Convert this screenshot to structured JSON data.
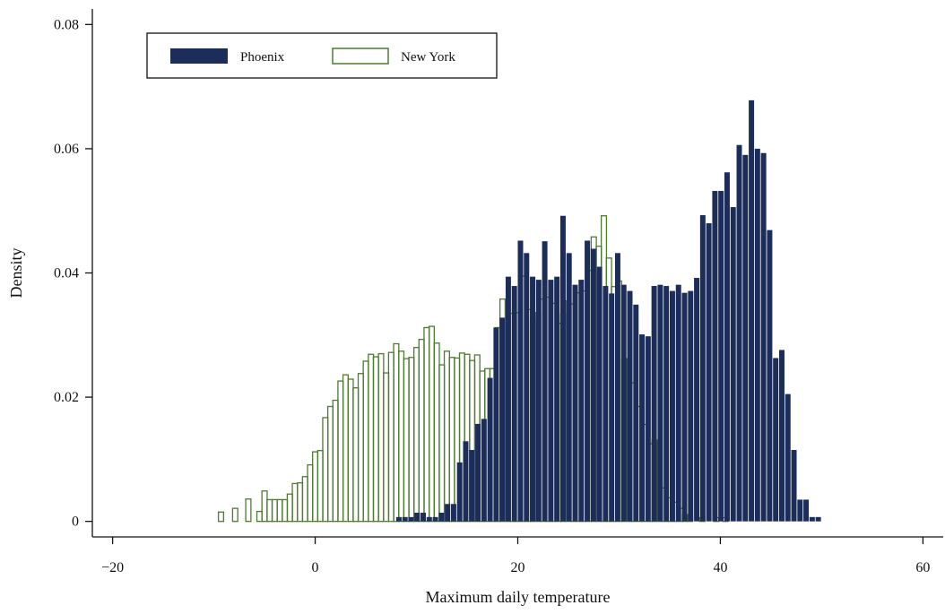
{
  "chart_data": {
    "type": "histogram",
    "title": "",
    "xlabel": "Maximum daily temperature",
    "ylabel": "Density",
    "xlim": [
      -22,
      62
    ],
    "ylim": [
      -0.0025,
      0.0825
    ],
    "xticks": [
      -20,
      0,
      20,
      40,
      60
    ],
    "xtick_labels": [
      "−20",
      "0",
      "20",
      "40",
      "60"
    ],
    "yticks": [
      0,
      0.02,
      0.04,
      0.06,
      0.08
    ],
    "ytick_labels": [
      "0",
      "0.02",
      "0.04",
      "0.06",
      "0.08"
    ],
    "grid": false,
    "legend_position": "top-left",
    "bin_width": 0.6,
    "series": [
      {
        "name": "Phoenix",
        "style": "filled",
        "fill_color": "#1c2d5a",
        "bins": [
          [
            8,
            0.0007
          ],
          [
            8.6,
            0.0007
          ],
          [
            9.2,
            0.0007
          ],
          [
            9.8,
            0.0014
          ],
          [
            10.4,
            0.0014
          ],
          [
            11,
            0.0007
          ],
          [
            11.6,
            0.0007
          ],
          [
            12.2,
            0.0014
          ],
          [
            12.8,
            0.0028
          ],
          [
            13.4,
            0.0028
          ],
          [
            14,
            0.0095
          ],
          [
            14.6,
            0.0129
          ],
          [
            15.2,
            0.0115
          ],
          [
            15.8,
            0.0157
          ],
          [
            16.4,
            0.0165
          ],
          [
            17,
            0.0231
          ],
          [
            17.6,
            0.0312
          ],
          [
            18.2,
            0.0328
          ],
          [
            18.8,
            0.0394
          ],
          [
            19.4,
            0.0379
          ],
          [
            20,
            0.0452
          ],
          [
            20.6,
            0.0432
          ],
          [
            21.2,
            0.0394
          ],
          [
            21.8,
            0.0389
          ],
          [
            22.4,
            0.0451
          ],
          [
            23,
            0.0389
          ],
          [
            23.6,
            0.0394
          ],
          [
            24.2,
            0.0492
          ],
          [
            24.8,
            0.0432
          ],
          [
            25.4,
            0.0381
          ],
          [
            26,
            0.0389
          ],
          [
            26.6,
            0.0452
          ],
          [
            27.2,
            0.0439
          ],
          [
            27.8,
            0.041
          ],
          [
            28.4,
            0.0379
          ],
          [
            29,
            0.0367
          ],
          [
            29.6,
            0.0432
          ],
          [
            30.2,
            0.0381
          ],
          [
            30.8,
            0.0371
          ],
          [
            31.4,
            0.0349
          ],
          [
            32,
            0.0301
          ],
          [
            32.6,
            0.0298
          ],
          [
            33.2,
            0.0379
          ],
          [
            33.8,
            0.0381
          ],
          [
            34.4,
            0.0379
          ],
          [
            35,
            0.0371
          ],
          [
            35.6,
            0.0381
          ],
          [
            36.2,
            0.0368
          ],
          [
            36.8,
            0.0371
          ],
          [
            37.4,
            0.0392
          ],
          [
            38,
            0.0493
          ],
          [
            38.6,
            0.048
          ],
          [
            39.2,
            0.0532
          ],
          [
            39.8,
            0.0532
          ],
          [
            40.4,
            0.0562
          ],
          [
            41,
            0.0506
          ],
          [
            41.6,
            0.0606
          ],
          [
            42.2,
            0.059
          ],
          [
            42.8,
            0.0678
          ],
          [
            43.4,
            0.06
          ],
          [
            44,
            0.0593
          ],
          [
            44.6,
            0.0469
          ],
          [
            45.2,
            0.0263
          ],
          [
            45.8,
            0.0276
          ],
          [
            46.4,
            0.0205
          ],
          [
            47,
            0.0115
          ],
          [
            47.6,
            0.0035
          ],
          [
            48.2,
            0.0035
          ],
          [
            48.8,
            0.0007
          ],
          [
            49.4,
            0.0007
          ]
        ]
      },
      {
        "name": "New York",
        "style": "outline",
        "stroke_color": "#4f7a32",
        "bins": [
          [
            -9.6,
            0.0015
          ],
          [
            -8.2,
            0.0021
          ],
          [
            -6.9,
            0.0036
          ],
          [
            -5.8,
            0.0016
          ],
          [
            -5.3,
            0.0049
          ],
          [
            -4.8,
            0.0035
          ],
          [
            -4.3,
            0.0035
          ],
          [
            -3.8,
            0.0035
          ],
          [
            -3.3,
            0.0035
          ],
          [
            -2.8,
            0.0044
          ],
          [
            -2.3,
            0.0061
          ],
          [
            -1.8,
            0.0062
          ],
          [
            -1.3,
            0.0072
          ],
          [
            -0.8,
            0.0091
          ],
          [
            -0.3,
            0.0112
          ],
          [
            0.2,
            0.0114
          ],
          [
            0.7,
            0.0167
          ],
          [
            1.2,
            0.0185
          ],
          [
            1.7,
            0.0195
          ],
          [
            2.2,
            0.0226
          ],
          [
            2.7,
            0.0236
          ],
          [
            3.2,
            0.0229
          ],
          [
            3.7,
            0.0215
          ],
          [
            4.2,
            0.0238
          ],
          [
            4.7,
            0.0258
          ],
          [
            5.2,
            0.0269
          ],
          [
            5.7,
            0.0265
          ],
          [
            6.2,
            0.027
          ],
          [
            6.7,
            0.0239
          ],
          [
            7.2,
            0.0272
          ],
          [
            7.7,
            0.0286
          ],
          [
            8.2,
            0.0274
          ],
          [
            8.7,
            0.0262
          ],
          [
            9.2,
            0.0264
          ],
          [
            9.7,
            0.028
          ],
          [
            10.2,
            0.0293
          ],
          [
            10.7,
            0.0312
          ],
          [
            11.2,
            0.0314
          ],
          [
            11.7,
            0.0287
          ],
          [
            12.2,
            0.0252
          ],
          [
            12.7,
            0.0274
          ],
          [
            13.2,
            0.0264
          ],
          [
            13.7,
            0.0263
          ],
          [
            14.2,
            0.0271
          ],
          [
            14.7,
            0.0269
          ],
          [
            15.2,
            0.0259
          ],
          [
            15.7,
            0.0268
          ],
          [
            16.2,
            0.0242
          ],
          [
            16.7,
            0.0246
          ],
          [
            17.2,
            0.0246
          ],
          [
            17.7,
            0.0312
          ],
          [
            18.2,
            0.0358
          ],
          [
            18.7,
            0.0324
          ],
          [
            19.2,
            0.0335
          ],
          [
            19.7,
            0.0336
          ],
          [
            20.2,
            0.0395
          ],
          [
            20.7,
            0.0341
          ],
          [
            21.2,
            0.0326
          ],
          [
            21.7,
            0.0336
          ],
          [
            22.2,
            0.0358
          ],
          [
            22.7,
            0.0361
          ],
          [
            23.2,
            0.0351
          ],
          [
            23.7,
            0.0319
          ],
          [
            24.2,
            0.0334
          ],
          [
            24.7,
            0.0355
          ],
          [
            25.2,
            0.035
          ],
          [
            25.7,
            0.0368
          ],
          [
            26.2,
            0.0371
          ],
          [
            26.7,
            0.0404
          ],
          [
            27.2,
            0.0458
          ],
          [
            27.7,
            0.0443
          ],
          [
            28.2,
            0.0492
          ],
          [
            28.7,
            0.0424
          ],
          [
            29.2,
            0.0378
          ],
          [
            29.7,
            0.0387
          ],
          [
            30.2,
            0.0262
          ],
          [
            30.7,
            0.0245
          ],
          [
            31.2,
            0.0223
          ],
          [
            31.7,
            0.0185
          ],
          [
            32.2,
            0.0156
          ],
          [
            32.7,
            0.0125
          ],
          [
            33.2,
            0.0131
          ],
          [
            33.7,
            0.006
          ],
          [
            34.2,
            0.0054
          ],
          [
            34.7,
            0.0038
          ],
          [
            35.2,
            0.0031
          ],
          [
            35.7,
            0.0021
          ],
          [
            36.2,
            0.0011
          ],
          [
            36.7,
            0.0006
          ],
          [
            37.9,
            0.0006
          ],
          [
            39.3,
            0.0006
          ],
          [
            40.2,
            0.0006
          ]
        ]
      }
    ]
  }
}
